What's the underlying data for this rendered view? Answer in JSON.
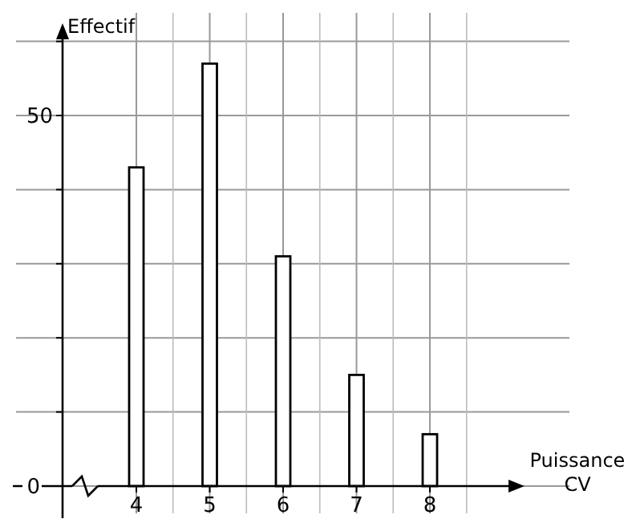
{
  "chart_data": {
    "type": "bar",
    "xlabel": "Puissance CV",
    "ylabel": "Effectif",
    "categories": [
      "4",
      "5",
      "6",
      "7",
      "8"
    ],
    "values": [
      43,
      57,
      31,
      15,
      7
    ],
    "color": "#ffffff",
    "ylim": [
      0,
      62
    ],
    "yticks": [
      0,
      {
        "value": 10,
        "label": null
      },
      {
        "value": 20,
        "label": null
      },
      {
        "value": 30,
        "label": null
      },
      {
        "value": 40,
        "label": null
      },
      50,
      {
        "value": 60,
        "label": null
      }
    ],
    "grid": true
  }
}
